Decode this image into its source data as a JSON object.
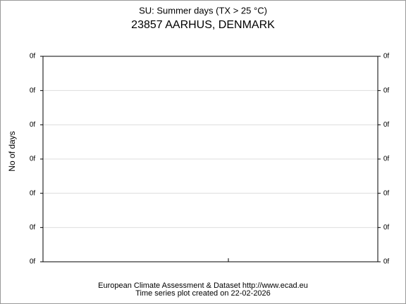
{
  "chart_data": {
    "type": "line",
    "title": "SU: Summer days (TX > 25 °C)",
    "subtitle": "23857 AARHUS, DENMARK",
    "ylabel": "No of days",
    "series": [],
    "ylim": [
      0,
      6
    ],
    "yticks": [
      {
        "value": 0,
        "label": "0f"
      },
      {
        "value": 1,
        "label": "0f"
      },
      {
        "value": 2,
        "label": "0f"
      },
      {
        "value": 3,
        "label": "0f"
      },
      {
        "value": 4,
        "label": "0f"
      },
      {
        "value": 5,
        "label": "0f"
      },
      {
        "value": 6,
        "label": "0f"
      }
    ],
    "grid": true,
    "footer": [
      "European Climate Assessment & Dataset  http://www.ecad.eu",
      "Time series plot created on 22-02-2026"
    ]
  }
}
